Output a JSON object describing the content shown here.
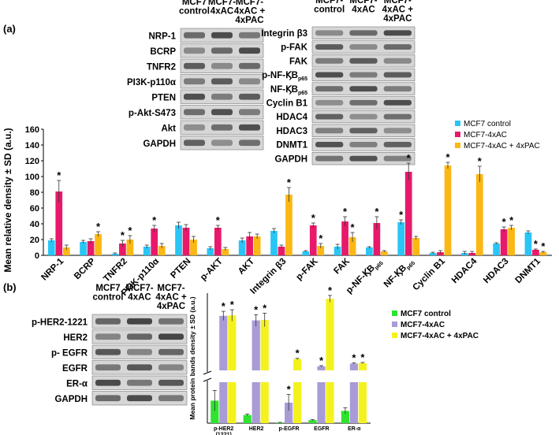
{
  "panel_a": {
    "label": "(a)",
    "blot_headers_left": [
      "MCF7\ncontrol",
      "MCF7-\n4xAC",
      "MCF7-\n4xAC +\n4xPAC"
    ],
    "blot_headers_right": [
      "MCF7-\ncontrol",
      "MCF7-\n4xAC",
      "MCF7-\n4xAC +\n4xPAC"
    ],
    "blot_rows_left": [
      "NRP-1",
      "BCRP",
      "TNFR2",
      "PI3K-p110α",
      "PTEN",
      "p-Akt-S473",
      "Akt",
      "GAPDH"
    ],
    "blot_rows_right": [
      "Integrin β3",
      "p-FAK",
      "FAK",
      "p-NF-ϏB",
      "NF-ϏB",
      "Cyclin B1",
      "HDAC4",
      "HDAC3",
      "DNMT1",
      "GAPDH"
    ],
    "nfkb_subscript": "p65"
  },
  "panel_b": {
    "label": "(b)",
    "blot_headers": [
      "MCF7\ncontrol",
      "MCF7-\n4xAC",
      "MCF7-\n4xAC +\n4xPAC"
    ],
    "blot_rows": [
      "p-HER2-1221",
      "HER2",
      "p- EGFR",
      "EGFR",
      "ER-α",
      "GAPDH"
    ]
  },
  "colors": {
    "a_control": "#29C5F6",
    "a_ac": "#E8196A",
    "a_pac": "#FBB713",
    "b_control": "#2FE32F",
    "b_ac": "#A99BD6",
    "b_pac": "#F4F21E"
  },
  "chart_data": [
    {
      "type": "bar",
      "ylabel": "Mean relative density ± SD (a.u.)",
      "ylim": [
        0,
        160
      ],
      "yticks": [
        "0",
        "20",
        "40",
        "60",
        "80",
        "100",
        "120",
        "140",
        "160"
      ],
      "grid": false,
      "legend_position": "top-right",
      "categories": [
        "NRP-1",
        "BCRP",
        "TNFR2",
        "PI3K-p110α",
        "PTEN",
        "p-AKT",
        "AKT",
        "Integrin β3",
        "p-FAK",
        "FAK",
        "p-NF-ϏB",
        "NF-ϏB",
        "Cyclin B1",
        "HDAC4",
        "HDAC3",
        "DNMT1"
      ],
      "series": [
        {
          "name": "MCF7 control",
          "values": [
            19,
            17,
            2,
            11,
            38,
            9,
            19,
            31,
            5,
            11,
            10,
            42,
            3,
            3,
            15,
            29
          ],
          "errors": [
            2,
            2,
            1,
            2,
            4,
            2,
            3,
            3,
            1,
            3,
            1,
            3,
            1,
            2,
            1,
            2
          ]
        },
        {
          "name": "MCF7-4xAC",
          "values": [
            81,
            18,
            15,
            34,
            35,
            35,
            24,
            11,
            38,
            43,
            41,
            106,
            4,
            3,
            33,
            7
          ],
          "errors": [
            14,
            3,
            4,
            4,
            4,
            3,
            5,
            2,
            3,
            6,
            8,
            11,
            2,
            2,
            3,
            1
          ]
        },
        {
          "name": "MCF7-4xAC + 4xPAC",
          "values": [
            10,
            27,
            20,
            12,
            20,
            8,
            24,
            77,
            12,
            23,
            5,
            22,
            114,
            103,
            35,
            4
          ],
          "errors": [
            3,
            3,
            5,
            3,
            4,
            2,
            3,
            9,
            3,
            6,
            1,
            2,
            4,
            10,
            3,
            1
          ]
        }
      ],
      "significance": {
        "MCF7-4xAC": [
          1,
          0,
          1,
          1,
          0,
          1,
          0,
          0,
          1,
          1,
          1,
          1,
          0,
          0,
          1,
          1
        ],
        "MCF7-4xAC + 4xPAC": [
          0,
          1,
          1,
          0,
          0,
          0,
          0,
          1,
          1,
          1,
          0,
          0,
          1,
          1,
          1,
          1
        ],
        "MCF7 control": [
          0,
          0,
          0,
          0,
          0,
          0,
          0,
          0,
          0,
          0,
          0,
          1,
          0,
          0,
          0,
          0
        ]
      },
      "annotation_mark": "*"
    },
    {
      "type": "bar",
      "ylabel": "Mean protein bands density ± SD (a.u.)",
      "axis_break": true,
      "grid": false,
      "legend_position": "top-right",
      "categories": [
        "p-HER2\n(1221)",
        "HER2",
        "p-EGFR",
        "EGFR",
        "ER-α"
      ],
      "series": [
        {
          "name": "MCF7  control",
          "values": [
            11,
            4,
            0.3,
            1.5,
            6
          ],
          "errors": [
            5,
            0.5,
            0.1,
            0.3,
            1.5
          ]
        },
        {
          "name": "MCF7-4xAC",
          "values": [
            260,
            240,
            10,
            38,
            50
          ],
          "errors": [
            20,
            25,
            4,
            3,
            3
          ]
        },
        {
          "name": "MCF7-4xAC + 4xPAC",
          "values": [
            262,
            242,
            70,
            335,
            52
          ],
          "errors": [
            25,
            30,
            3,
            15,
            3
          ]
        }
      ],
      "significance": {
        "MCF7-4xAC": [
          1,
          1,
          1,
          1,
          1
        ],
        "MCF7-4xAC + 4xPAC": [
          1,
          1,
          1,
          1,
          1
        ]
      },
      "annotation_mark": "*"
    }
  ]
}
